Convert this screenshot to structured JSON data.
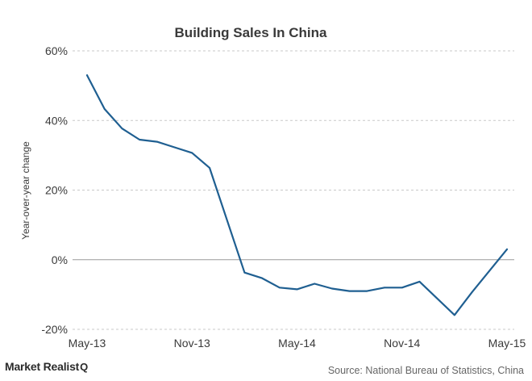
{
  "chart_data": {
    "type": "line",
    "title": "Building Sales In China",
    "ylabel": "Year-over-year change",
    "xlabel": "",
    "x": [
      "May-13",
      "Jun-13",
      "Jul-13",
      "Aug-13",
      "Sep-13",
      "Oct-13",
      "Nov-13",
      "Dec-13",
      "Jan-14",
      "Feb-14",
      "Mar-14",
      "Apr-14",
      "May-14",
      "Jun-14",
      "Jul-14",
      "Aug-14",
      "Sep-14",
      "Oct-14",
      "Nov-14",
      "Dec-14",
      "Jan-15",
      "Feb-15",
      "Mar-15",
      "Apr-15",
      "May-15"
    ],
    "x_ticks": [
      "May-13",
      "Nov-13",
      "May-14",
      "Nov-14",
      "May-15"
    ],
    "series": [
      {
        "name": "",
        "color": "#1f5f91",
        "values": [
          53.0,
          43.3,
          37.7,
          34.5,
          33.9,
          32.3,
          30.7,
          26.4,
          null,
          -3.7,
          -5.3,
          -8.0,
          -8.5,
          -6.9,
          -8.3,
          -9.0,
          -9.0,
          -8.0,
          -8.0,
          -6.3,
          null,
          -15.9,
          -9.3,
          null,
          3.0
        ]
      }
    ],
    "ylim": [
      -20,
      60
    ],
    "yticks": [
      -20,
      0,
      20,
      40,
      60
    ],
    "ytick_labels": [
      "-20%",
      "0%",
      "20%",
      "40%",
      "60%"
    ],
    "grid": true,
    "legend": "none"
  },
  "footer": {
    "brand": "Market Realist",
    "brand_icon": "magnifier-q-icon",
    "brand_glyph": "Q",
    "source": "Source: National Bureau of Statistics, China"
  }
}
